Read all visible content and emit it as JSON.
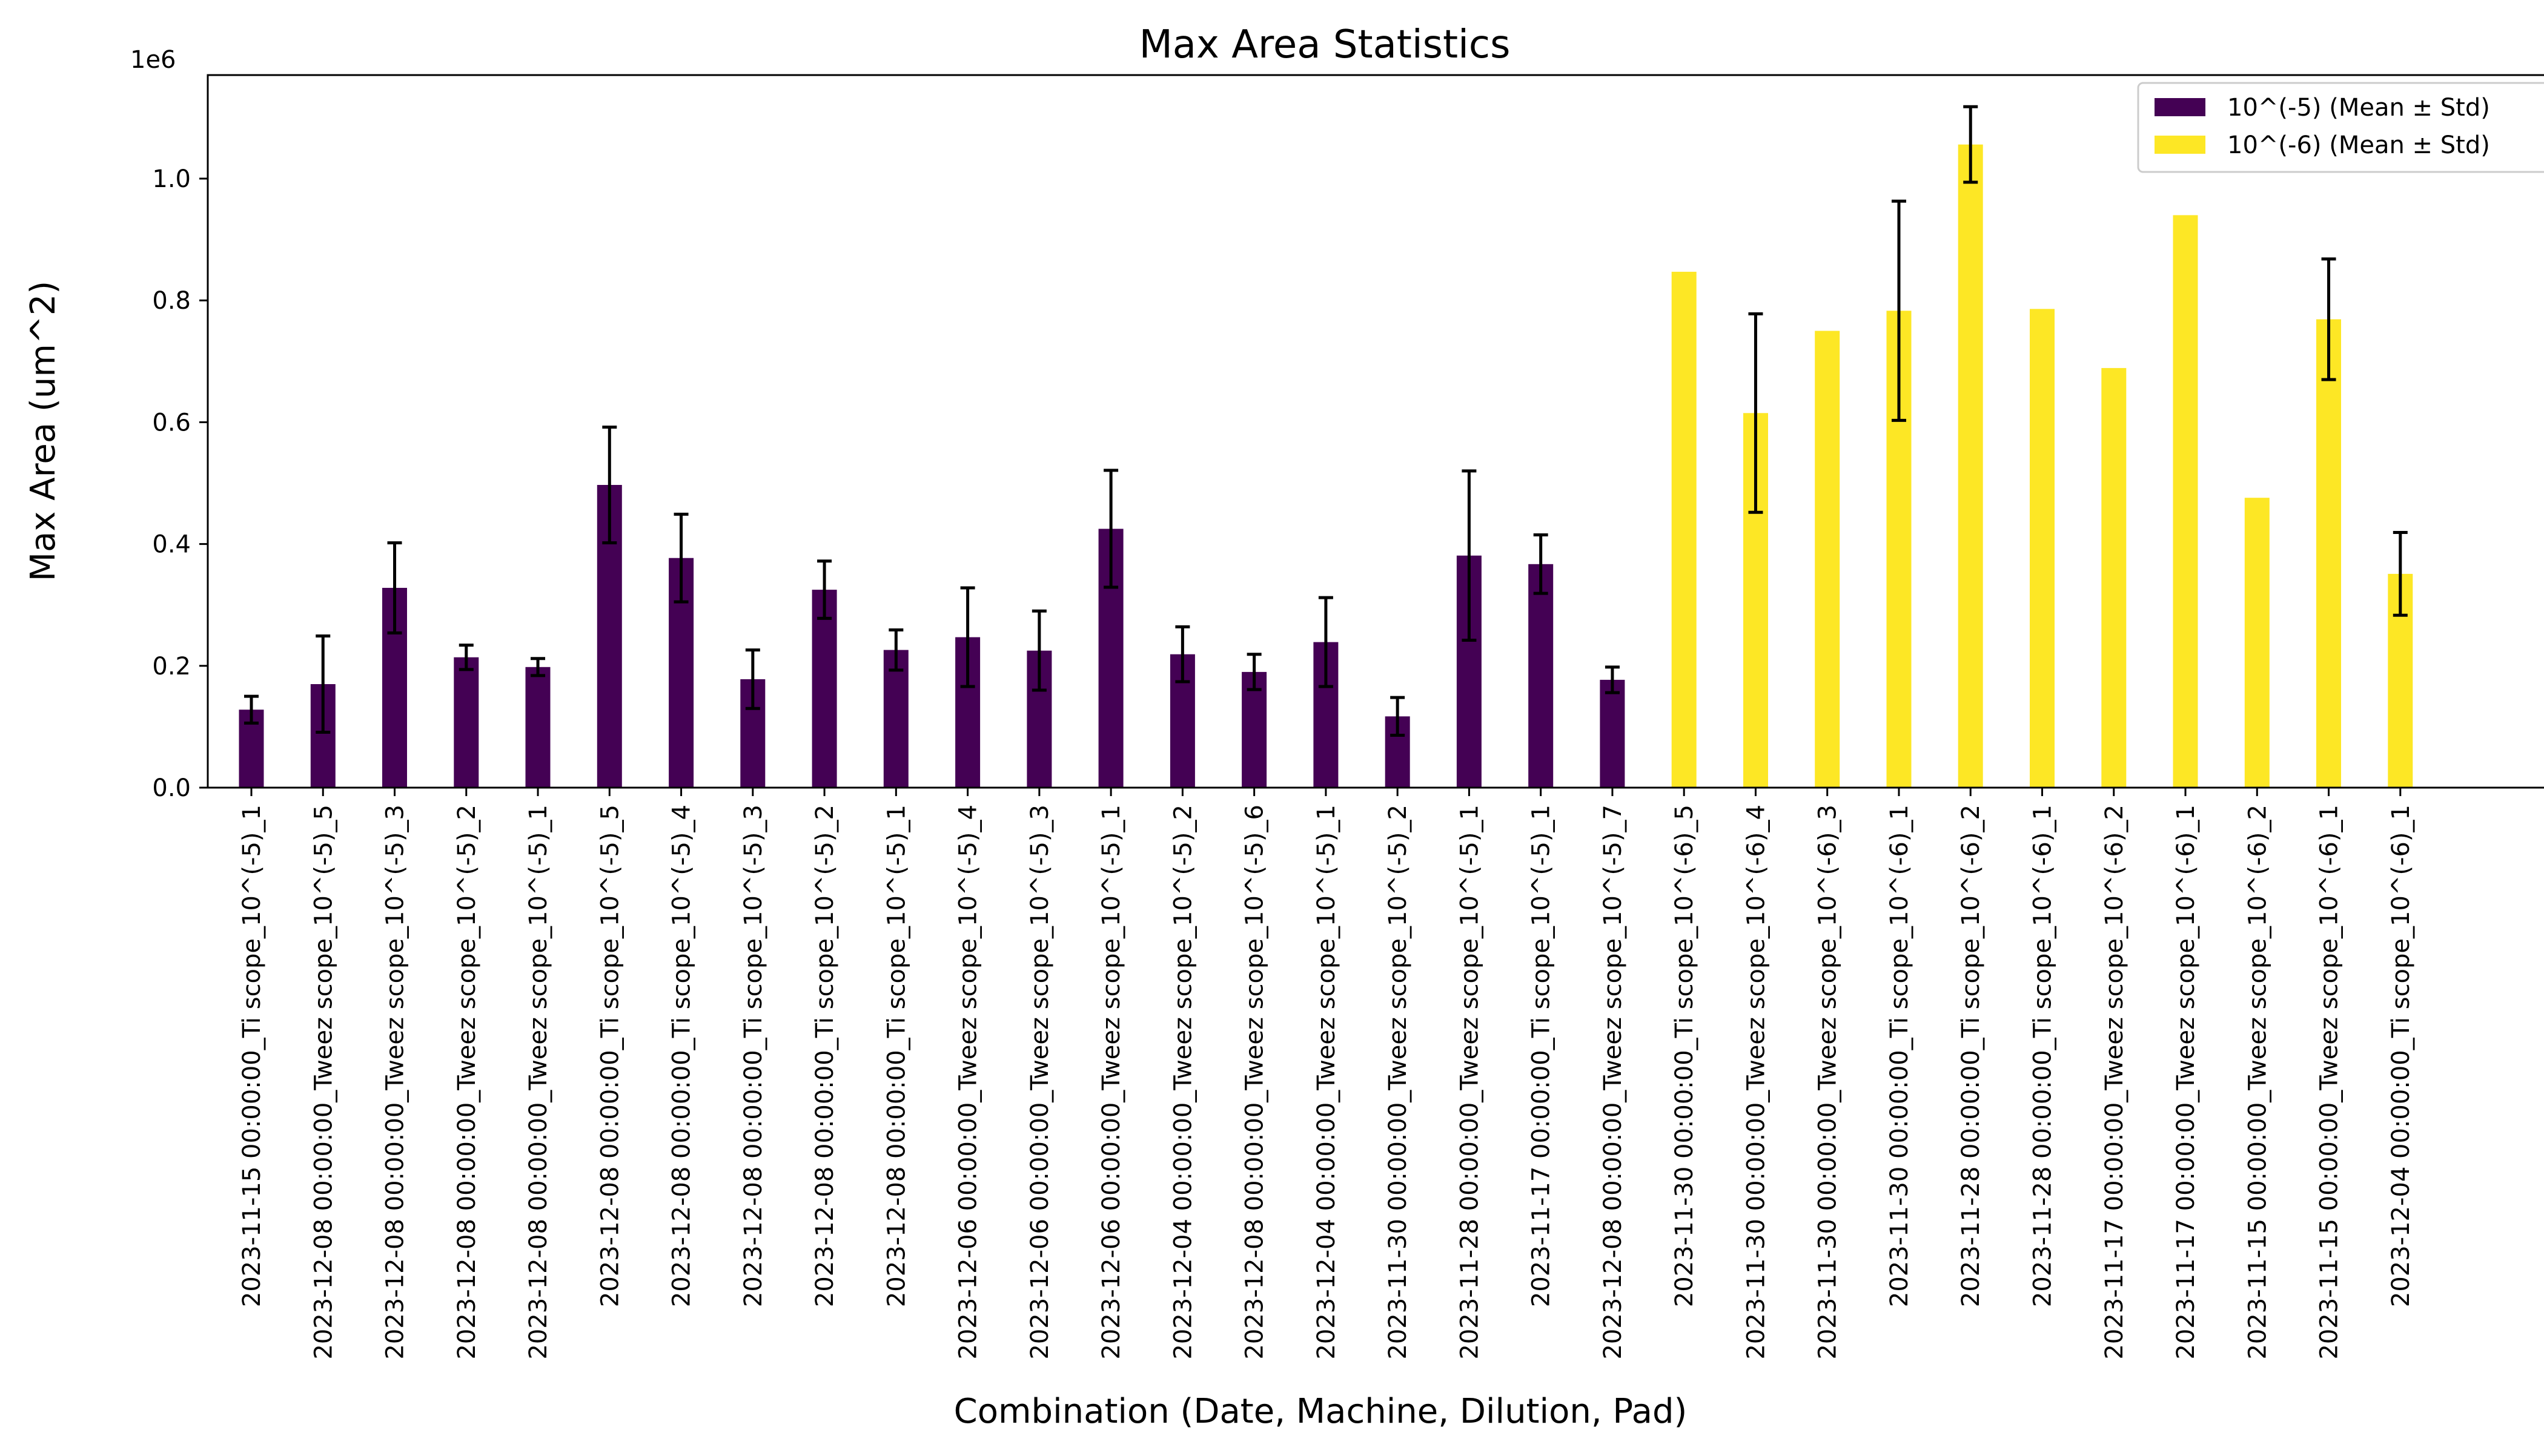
{
  "chart_data": {
    "type": "bar",
    "title": "Max Area Statistics",
    "xlabel": "Combination (Date, Machine, Dilution, Pad)",
    "ylabel": "Max Area (um^2)",
    "y_offset_label": "1e6",
    "ylim": [
      0,
      1.17
    ],
    "yticks": [
      "0.0",
      "0.2",
      "0.4",
      "0.6",
      "0.8",
      "1.0"
    ],
    "ytick_values": [
      0,
      0.2,
      0.4,
      0.6,
      0.8,
      1.0
    ],
    "legend_position": "upper-right",
    "grid": false,
    "series": [
      {
        "name": "10^(-5) (Mean ± Std)",
        "color": "#440154",
        "categories": [
          "2023-11-15 00:00:00_Ti scope_10^(-5)_1",
          "2023-12-08 00:00:00_Tweez scope_10^(-5)_5",
          "2023-12-08 00:00:00_Tweez scope_10^(-5)_3",
          "2023-12-08 00:00:00_Tweez scope_10^(-5)_2",
          "2023-12-08 00:00:00_Tweez scope_10^(-5)_1",
          "2023-12-08 00:00:00_Ti scope_10^(-5)_5",
          "2023-12-08 00:00:00_Ti scope_10^(-5)_4",
          "2023-12-08 00:00:00_Ti scope_10^(-5)_3",
          "2023-12-08 00:00:00_Ti scope_10^(-5)_2",
          "2023-12-08 00:00:00_Ti scope_10^(-5)_1",
          "2023-12-06 00:00:00_Tweez scope_10^(-5)_4",
          "2023-12-06 00:00:00_Tweez scope_10^(-5)_3",
          "2023-12-06 00:00:00_Tweez scope_10^(-5)_1",
          "2023-12-04 00:00:00_Tweez scope_10^(-5)_2",
          "2023-12-08 00:00:00_Tweez scope_10^(-5)_6",
          "2023-12-04 00:00:00_Tweez scope_10^(-5)_1",
          "2023-11-30 00:00:00_Tweez scope_10^(-5)_2",
          "2023-11-28 00:00:00_Tweez scope_10^(-5)_1",
          "2023-11-17 00:00:00_Ti scope_10^(-5)_1",
          "2023-12-08 00:00:00_Tweez scope_10^(-5)_7"
        ],
        "values": [
          0.128,
          0.17,
          0.328,
          0.214,
          0.198,
          0.497,
          0.377,
          0.178,
          0.325,
          0.226,
          0.247,
          0.225,
          0.425,
          0.219,
          0.19,
          0.239,
          0.117,
          0.381,
          0.367,
          0.177
        ],
        "errors": [
          0.022,
          0.079,
          0.074,
          0.02,
          0.014,
          0.095,
          0.072,
          0.048,
          0.047,
          0.033,
          0.081,
          0.065,
          0.096,
          0.045,
          0.029,
          0.073,
          0.031,
          0.139,
          0.048,
          0.021
        ]
      },
      {
        "name": "10^(-6) (Mean ± Std)",
        "color": "#fde725",
        "categories": [
          "2023-11-30 00:00:00_Ti scope_10^(-6)_5",
          "2023-11-30 00:00:00_Tweez scope_10^(-6)_4",
          "2023-11-30 00:00:00_Tweez scope_10^(-6)_3",
          "2023-11-30 00:00:00_Ti scope_10^(-6)_1",
          "2023-11-28 00:00:00_Ti scope_10^(-6)_2",
          "2023-11-28 00:00:00_Ti scope_10^(-6)_1",
          "2023-11-17 00:00:00_Tweez scope_10^(-6)_2",
          "2023-11-17 00:00:00_Tweez scope_10^(-6)_1",
          "2023-11-15 00:00:00_Tweez scope_10^(-6)_2",
          "2023-11-15 00:00:00_Tweez scope_10^(-6)_1",
          "2023-12-04 00:00:00_Ti scope_10^(-6)_1"
        ],
        "values": [
          0.847,
          0.615,
          0.75,
          0.783,
          1.056,
          0.786,
          0.689,
          0.94,
          0.476,
          0.769,
          0.351
        ],
        "errors": [
          null,
          0.163,
          null,
          0.18,
          0.062,
          null,
          null,
          null,
          null,
          0.099,
          0.068
        ]
      }
    ]
  }
}
